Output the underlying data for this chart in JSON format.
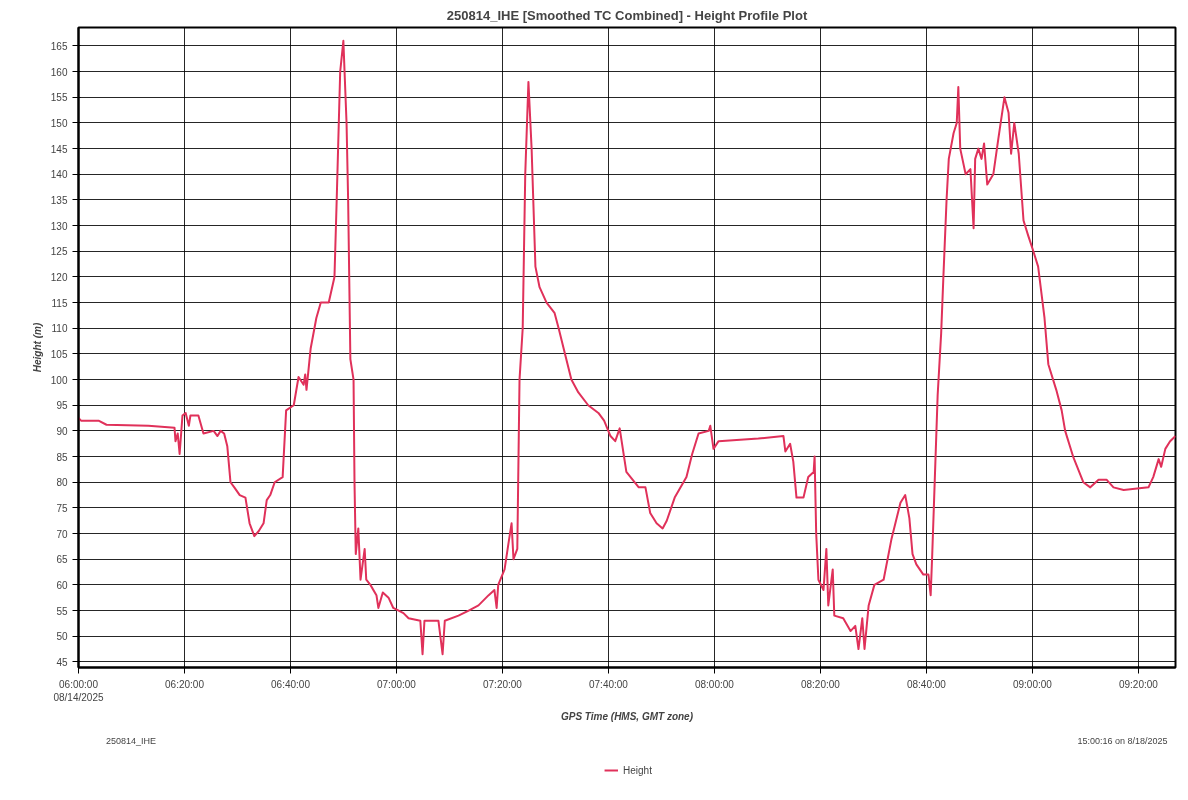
{
  "chart_data": {
    "type": "line",
    "title": "250814_IHE [Smoothed TC Combined] - Height Profile Plot",
    "xlabel": "GPS Time (HMS, GMT zone)",
    "ylabel": "Height (m)",
    "annotations": [
      "250814_IHE",
      "15:00:16 on 8/18/2025"
    ],
    "xlim": [
      6.0,
      9.45
    ],
    "ylim": [
      43.9,
      168.6
    ],
    "xticks": [
      {
        "value": 6.0,
        "label": "06:00:00\n08/14/2025"
      },
      {
        "value": 6.3333,
        "label": "06:20:00"
      },
      {
        "value": 6.6667,
        "label": "06:40:00"
      },
      {
        "value": 7.0,
        "label": "07:00:00"
      },
      {
        "value": 7.3333,
        "label": "07:20:00"
      },
      {
        "value": 7.6667,
        "label": "07:40:00"
      },
      {
        "value": 8.0,
        "label": "08:00:00"
      },
      {
        "value": 8.3333,
        "label": "08:20:00"
      },
      {
        "value": 8.6667,
        "label": "08:40:00"
      },
      {
        "value": 9.0,
        "label": "09:00:00"
      },
      {
        "value": 9.3333,
        "label": "09:20:00"
      }
    ],
    "yticks": [
      45,
      50,
      55,
      60,
      65,
      70,
      75,
      80,
      85,
      90,
      95,
      100,
      105,
      110,
      115,
      120,
      125,
      130,
      135,
      140,
      145,
      150,
      155,
      160,
      165
    ],
    "grid": true,
    "legend": "bottom",
    "line_style": "solid",
    "marker": "none",
    "series": [
      {
        "name": "Height",
        "color": "#e0315a",
        "x": [
          6.0,
          6.008,
          6.063,
          6.088,
          6.22,
          6.302,
          6.305,
          6.312,
          6.318,
          6.327,
          6.337,
          6.347,
          6.352,
          6.377,
          6.393,
          6.425,
          6.437,
          6.447,
          6.458,
          6.468,
          6.478,
          6.49,
          6.507,
          6.525,
          6.538,
          6.553,
          6.567,
          6.582,
          6.592,
          6.603,
          6.617,
          6.642,
          6.653,
          6.677,
          6.692,
          6.708,
          6.713,
          6.717,
          6.73,
          6.748,
          6.762,
          6.787,
          6.805,
          6.812,
          6.823,
          6.833,
          6.843,
          6.848,
          6.855,
          6.865,
          6.868,
          6.872,
          6.88,
          6.887,
          6.9,
          6.905,
          6.918,
          6.937,
          6.943,
          6.957,
          6.975,
          6.99,
          7.022,
          7.038,
          7.075,
          7.082,
          7.088,
          7.132,
          7.145,
          7.152,
          7.195,
          7.227,
          7.258,
          7.29,
          7.308,
          7.315,
          7.32,
          7.34,
          7.352,
          7.362,
          7.368,
          7.38,
          7.387,
          7.397,
          7.405,
          7.415,
          7.425,
          7.437,
          7.45,
          7.472,
          7.497,
          7.51,
          7.532,
          7.55,
          7.572,
          7.603,
          7.635,
          7.653,
          7.673,
          7.688,
          7.702,
          7.723,
          7.762,
          7.783,
          7.798,
          7.818,
          7.837,
          7.85,
          7.875,
          7.912,
          7.93,
          7.95,
          7.982,
          7.987,
          7.997,
          8.013,
          8.138,
          8.217,
          8.223,
          8.238,
          8.248,
          8.258,
          8.28,
          8.295,
          8.312,
          8.315,
          8.32,
          8.327,
          8.343,
          8.352,
          8.358,
          8.372,
          8.377,
          8.405,
          8.428,
          8.443,
          8.453,
          8.465,
          8.472,
          8.485,
          8.503,
          8.532,
          8.557,
          8.585,
          8.6,
          8.613,
          8.623,
          8.635,
          8.657,
          8.673,
          8.68,
          8.685,
          8.702,
          8.713,
          8.72,
          8.73,
          8.737,
          8.752,
          8.762,
          8.767,
          8.773,
          8.79,
          8.805,
          8.815,
          8.82,
          8.83,
          8.84,
          8.848,
          8.858,
          8.877,
          8.893,
          8.912,
          8.925,
          8.933,
          8.943,
          8.957,
          8.972,
          8.987,
          9.003,
          9.018,
          9.038,
          9.05,
          9.075,
          9.092,
          9.103,
          9.128,
          9.16,
          9.182,
          9.208,
          9.233,
          9.255,
          9.287,
          9.365,
          9.38,
          9.397,
          9.405,
          9.418,
          9.433,
          9.45
        ],
        "values": [
          92.5,
          92,
          92,
          91.2,
          91,
          90.6,
          88,
          89.5,
          85.5,
          93,
          93.5,
          91,
          93,
          93,
          89.5,
          90,
          89,
          90,
          89.5,
          87,
          80,
          79,
          77.5,
          77,
          72,
          69.5,
          70.5,
          72,
          76.5,
          77.5,
          80,
          81,
          94,
          95,
          100.5,
          99,
          101,
          98,
          106,
          112,
          115,
          115,
          120,
          135,
          160,
          166,
          150,
          135,
          104,
          100,
          80,
          66,
          71,
          61,
          67,
          61,
          60,
          58,
          55.5,
          58.5,
          57.5,
          55.5,
          54.5,
          53.5,
          53,
          46.5,
          53,
          53,
          46.5,
          53,
          54,
          55,
          56,
          58,
          59,
          55.5,
          60,
          63,
          68,
          72,
          65,
          67,
          100,
          110,
          140,
          158,
          145,
          122,
          118,
          115,
          113,
          110,
          104.5,
          100,
          97.5,
          95,
          93.5,
          92,
          89,
          88,
          90.5,
          82,
          79,
          79,
          74,
          72,
          71,
          72.5,
          77,
          81,
          85.5,
          89.5,
          90,
          91,
          86.5,
          88,
          88.5,
          89,
          86,
          87.5,
          84,
          77,
          77,
          81,
          82,
          85,
          70,
          61,
          59,
          67,
          56,
          63,
          54,
          53.5,
          51,
          52,
          47.5,
          53.5,
          47.5,
          56,
          60,
          61,
          69,
          76,
          77.5,
          73,
          66,
          64,
          62,
          62,
          58,
          66,
          97,
          109,
          120,
          135,
          143,
          148,
          150,
          157,
          145,
          140,
          141,
          129.5,
          143,
          145,
          143,
          146,
          138,
          140,
          147,
          155,
          152,
          144,
          150,
          144,
          131,
          128,
          125,
          122,
          112,
          103,
          98,
          94,
          90,
          85,
          80,
          79,
          80.5,
          80.5,
          79,
          78.5,
          79,
          81,
          84.5,
          83,
          86.5,
          88,
          89
        ]
      }
    ]
  }
}
